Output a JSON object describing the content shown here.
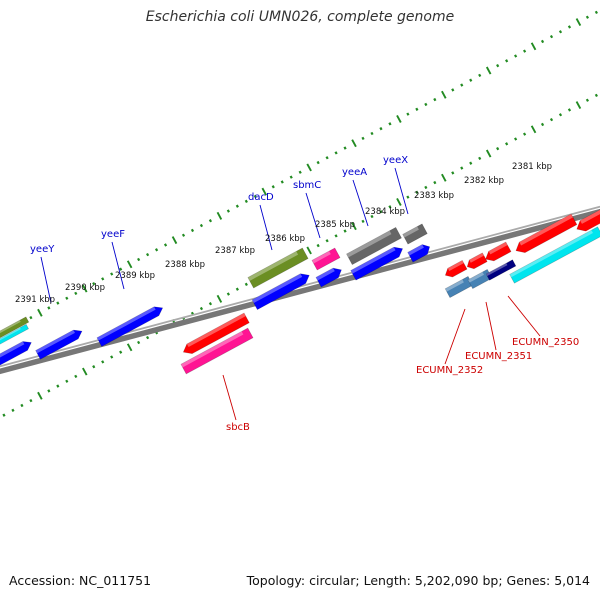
{
  "header": {
    "title": "Escherichia coli UMN026, complete genome"
  },
  "footer": {
    "accession": "Accession: NC_011751",
    "summary": "Topology: circular; Length: 5,202,090 bp; Genes: 5,014"
  },
  "colors": {
    "backbone": "#808080",
    "tick": "#228b22",
    "label_gene_top": "#0000cc",
    "label_gene_bottom": "#cc0000",
    "blue": "#0000ff",
    "red": "#ff0000",
    "olive": "#6b8e23",
    "magenta": "#ff1493",
    "gray": "#666666",
    "cyan": "#00e5ee",
    "steelblue": "#4682b4",
    "navy": "#000080"
  },
  "scale_labels": [
    {
      "text": "2381 kbp"
    },
    {
      "text": "2382 kbp"
    },
    {
      "text": "2383 kbp"
    },
    {
      "text": "2384 kbp"
    },
    {
      "text": "2385 kbp"
    },
    {
      "text": "2386 kbp"
    },
    {
      "text": "2387 kbp"
    },
    {
      "text": "2388 kbp"
    },
    {
      "text": "2389 kbp"
    },
    {
      "text": "2390 kbp"
    },
    {
      "text": "2391 kbp"
    }
  ],
  "gene_labels": [
    {
      "text": "yeeX",
      "color_key": "label_gene_top"
    },
    {
      "text": "yeeA",
      "color_key": "label_gene_top"
    },
    {
      "text": "sbmC",
      "color_key": "label_gene_top"
    },
    {
      "text": "dacD",
      "color_key": "label_gene_top"
    },
    {
      "text": "yeeF",
      "color_key": "label_gene_top"
    },
    {
      "text": "yeeY",
      "color_key": "label_gene_top"
    },
    {
      "text": "sbcB",
      "color_key": "label_gene_bottom"
    },
    {
      "text": "ECUMN_2350",
      "color_key": "label_gene_bottom"
    },
    {
      "text": "ECUMN_2351",
      "color_key": "label_gene_bottom"
    },
    {
      "text": "ECUMN_2352",
      "color_key": "label_gene_bottom"
    }
  ],
  "features": [
    {
      "name": "feature-olive-left",
      "color_key": "olive"
    },
    {
      "name": "feature-cyan-left",
      "color_key": "cyan"
    },
    {
      "name": "feature-blue-left-edge",
      "color_key": "blue"
    },
    {
      "name": "feature-blue-2",
      "color_key": "blue"
    },
    {
      "name": "feature-yeeF",
      "color_key": "blue"
    },
    {
      "name": "feature-sbcB-red",
      "color_key": "red"
    },
    {
      "name": "feature-sbcB-magenta",
      "color_key": "magenta"
    },
    {
      "name": "feature-dacD-olive",
      "color_key": "olive"
    },
    {
      "name": "feature-dacD-blue",
      "color_key": "blue"
    },
    {
      "name": "feature-sbmC-magenta",
      "color_key": "magenta"
    },
    {
      "name": "feature-sbmC-blue",
      "color_key": "blue"
    },
    {
      "name": "feature-yeeA-gray",
      "color_key": "gray"
    },
    {
      "name": "feature-yeeA-blue",
      "color_key": "blue"
    },
    {
      "name": "feature-yeeX-gray",
      "color_key": "gray"
    },
    {
      "name": "feature-yeeX-blue",
      "color_key": "blue"
    },
    {
      "name": "feature-ECUMN-2352",
      "color_key": "steelblue"
    },
    {
      "name": "feature-ECUMN-2351",
      "color_key": "steelblue"
    },
    {
      "name": "feature-navy",
      "color_key": "navy"
    },
    {
      "name": "feature-cyan-right",
      "color_key": "cyan"
    },
    {
      "name": "feature-red-r1",
      "color_key": "red"
    },
    {
      "name": "feature-red-r2",
      "color_key": "red"
    },
    {
      "name": "feature-red-r3",
      "color_key": "red"
    },
    {
      "name": "feature-red-r4",
      "color_key": "red"
    },
    {
      "name": "feature-red-r5",
      "color_key": "red"
    }
  ]
}
